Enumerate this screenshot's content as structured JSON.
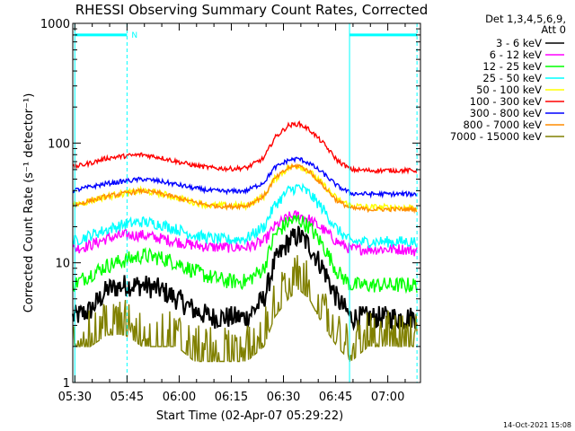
{
  "chart_data": {
    "type": "line",
    "title": "RHESSI Observing Summary Count Rates, Corrected",
    "xlabel": "Start Time (02-Apr-07 05:29:22)",
    "ylabel": "Corrected Count Rate (s⁻¹ detector⁻¹)",
    "ylim": [
      1,
      1000
    ],
    "yscale": "log",
    "xlim_minutes_after_0529_22": [
      0,
      100
    ],
    "x_ticks": [
      {
        "label": "05:30",
        "minutes": 0.6
      },
      {
        "label": "05:45",
        "minutes": 15.6
      },
      {
        "label": "06:00",
        "minutes": 30.6
      },
      {
        "label": "06:15",
        "minutes": 45.6
      },
      {
        "label": "06:30",
        "minutes": 60.6
      },
      {
        "label": "06:45",
        "minutes": 75.6
      },
      {
        "label": "07:00",
        "minutes": 90.6
      }
    ],
    "y_ticks": [
      {
        "label": "1",
        "value": 1
      },
      {
        "label": "10",
        "value": 10
      },
      {
        "label": "100",
        "value": 100
      },
      {
        "label": "1000",
        "value": 1000
      }
    ],
    "legend_header": [
      "Det 1,3,4,5,6,9,",
      "Att 0"
    ],
    "annotations": {
      "night_marker_label": "N",
      "night_marker_level": 800,
      "night_intervals_minutes": [
        [
          0.6,
          15.6
        ],
        [
          79.6,
          99.0
        ]
      ],
      "dashed_vertical_lines_minutes": [
        15.6,
        99.0
      ],
      "solid_vertical_lines_minutes": [
        0.6,
        79.6
      ],
      "timestamp": "14-Oct-2021 15:08"
    },
    "x_minutes": [
      0,
      5,
      10,
      15,
      20,
      25,
      30,
      35,
      40,
      45,
      50,
      55,
      58,
      62,
      65,
      68,
      72,
      76,
      80,
      85,
      90,
      95,
      99
    ],
    "series": [
      {
        "name": "3 - 6 keV",
        "color": "#000000",
        "noise": 0.1,
        "values": [
          3.5,
          4,
          6,
          6.5,
          6.5,
          6,
          5,
          4,
          3.5,
          3.5,
          3.5,
          5,
          10,
          15,
          17,
          14,
          9,
          5,
          3.5,
          3.5,
          3.5,
          3.5,
          3.5
        ]
      },
      {
        "name": "6 - 12 keV",
        "color": "#ff00ff",
        "noise": 0.05,
        "values": [
          13,
          14,
          16,
          17,
          17,
          16,
          15,
          14,
          13.5,
          13.5,
          13.5,
          15,
          20,
          24,
          25,
          23,
          19,
          15,
          13,
          13,
          13,
          13,
          12.5
        ]
      },
      {
        "name": "12 - 25 keV",
        "color": "#00ff00",
        "noise": 0.07,
        "values": [
          6.5,
          8,
          9.5,
          10.5,
          11.5,
          11,
          10,
          8.5,
          7.5,
          7,
          7,
          9,
          17,
          22,
          23,
          20,
          14,
          8.5,
          6.5,
          6.5,
          6.5,
          6.5,
          6.5
        ]
      },
      {
        "name": "25 - 50 keV",
        "color": "#00ffff",
        "noise": 0.05,
        "values": [
          15,
          17,
          19,
          21,
          22,
          21,
          19,
          17,
          16,
          15.5,
          16,
          20,
          30,
          40,
          43,
          38,
          28,
          19,
          15,
          15,
          15,
          15,
          15
        ]
      },
      {
        "name": "50 - 100 keV",
        "color": "#ffff00",
        "noise": 0.03,
        "values": [
          30,
          33,
          36,
          38,
          40,
          38,
          35,
          32,
          30,
          30,
          30,
          36,
          50,
          62,
          65,
          58,
          45,
          34,
          30,
          29,
          29,
          29,
          29
        ]
      },
      {
        "name": "100 - 300 keV",
        "color": "#ff0000",
        "noise": 0.02,
        "values": [
          63,
          68,
          75,
          78,
          80,
          76,
          70,
          65,
          62,
          61,
          62,
          75,
          110,
          140,
          145,
          130,
          100,
          72,
          60,
          59,
          59,
          59,
          59
        ]
      },
      {
        "name": "300 - 800 keV",
        "color": "#0000ff",
        "noise": 0.02,
        "values": [
          40,
          43,
          46,
          48,
          50,
          48,
          45,
          42,
          40,
          39.5,
          40,
          47,
          62,
          72,
          74,
          68,
          56,
          44,
          38,
          37.5,
          37.5,
          37.5,
          37.5
        ]
      },
      {
        "name": "800 - 7000 keV",
        "color": "#ff8c00",
        "noise": 0.02,
        "values": [
          30,
          33,
          36,
          38,
          40,
          38,
          35,
          32,
          30,
          29.5,
          30,
          36,
          50,
          62,
          65,
          58,
          44,
          33,
          28.5,
          28,
          28,
          28,
          28
        ]
      },
      {
        "name": "7000 - 15000 keV",
        "color": "#808000",
        "noise": 0.0,
        "values": [
          2,
          2,
          2.5,
          2.5,
          2,
          2,
          2,
          1.5,
          1.5,
          1.5,
          1.5,
          2,
          3.5,
          5,
          6,
          5,
          3,
          2,
          1.5,
          2,
          2,
          2,
          2
        ]
      }
    ]
  }
}
